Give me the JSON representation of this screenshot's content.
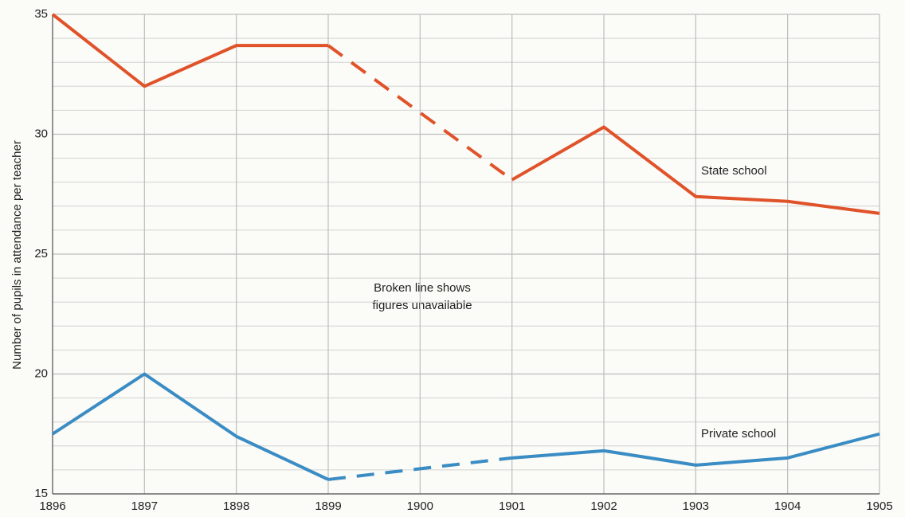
{
  "chart_data": {
    "type": "line",
    "y_label": "Number of pupils in attendance per teacher",
    "x": [
      1896,
      1897,
      1898,
      1899,
      1900,
      1901,
      1902,
      1903,
      1904,
      1905
    ],
    "series": [
      {
        "name": "State school",
        "color": "#e0532a",
        "values": [
          35,
          32.0,
          33.7,
          33.7,
          null,
          28.1,
          30.3,
          27.4,
          27.2,
          26.7
        ]
      },
      {
        "name": "Private school",
        "color": "#3a8cc4",
        "values": [
          17.5,
          20,
          17.4,
          15.6,
          null,
          16.5,
          16.8,
          16.2,
          16.5,
          17.5
        ]
      }
    ],
    "annotation": [
      "Broken line shows",
      "figures unavailable"
    ],
    "xlim": [
      1896,
      1905
    ],
    "xticks": [
      1896,
      1897,
      1898,
      1899,
      1900,
      1901,
      1902,
      1903,
      1904,
      1905
    ],
    "ylim": [
      15,
      35
    ],
    "yticks": [
      15,
      20,
      25,
      30,
      35
    ],
    "minor_yticks": [
      16,
      17,
      18,
      19,
      21,
      22,
      23,
      24,
      26,
      27,
      28,
      29,
      31,
      32,
      33,
      34
    ],
    "grid": true
  }
}
